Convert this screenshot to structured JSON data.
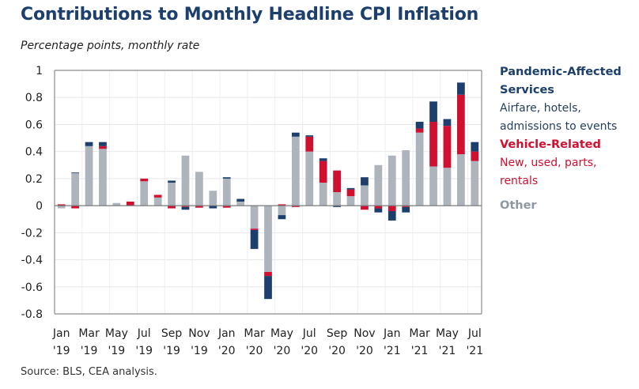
{
  "title": "Contributions to Monthly Headline CPI Inflation",
  "subtitle": "Percentage points, monthly rate",
  "source": "Source: BLS, CEA analysis.",
  "legend": {
    "pandemic_title": "Pandemic-Affected Services",
    "pandemic_title_line1": "Pandemic-Affected",
    "pandemic_title_line2": "Services",
    "pandemic_desc_line1": "Airfare, hotels,",
    "pandemic_desc_line2": "admissions to events",
    "vehicle_title": "Vehicle-Related",
    "vehicle_desc_line1": "New, used, parts,",
    "vehicle_desc_line2": "rentals",
    "other_title": "Other"
  },
  "colors": {
    "pandemic": "#1c3f6e",
    "vehicle": "#d0102f",
    "other": "#aeb4bc",
    "title": "#1c3f6e"
  },
  "chart_data": {
    "type": "bar",
    "stacked": true,
    "title": "Contributions to Monthly Headline CPI Inflation",
    "subtitle": "Percentage points, monthly rate",
    "xlabel": "",
    "ylabel": "Percentage points, monthly rate",
    "ylim": [
      -0.8,
      1.0
    ],
    "yticks": [
      1,
      0.8,
      0.6,
      0.4,
      0.2,
      0,
      -0.2,
      -0.4,
      -0.6,
      -0.8
    ],
    "ytick_labels": [
      "1",
      "0.8",
      "0.6",
      "0.4",
      "0.2",
      "0",
      "-0.2",
      "-0.4",
      "-0.6",
      "-0.8"
    ],
    "grid": true,
    "legend_position": "right",
    "categories": [
      "Jan 2019",
      "Feb 2019",
      "Mar 2019",
      "Apr 2019",
      "May 2019",
      "Jun 2019",
      "Jul 2019",
      "Aug 2019",
      "Sep 2019",
      "Oct 2019",
      "Nov 2019",
      "Dec 2019",
      "Jan 2020",
      "Feb 2020",
      "Mar 2020",
      "Apr 2020",
      "May 2020",
      "Jun 2020",
      "Jul 2020",
      "Aug 2020",
      "Sep 2020",
      "Oct 2020",
      "Nov 2020",
      "Dec 2020",
      "Jan 2021",
      "Feb 2021",
      "Mar 2021",
      "Apr 2021",
      "May 2021",
      "Jun 2021",
      "Jul 2021"
    ],
    "xtick_labels": [
      {
        "index": 0,
        "line1": "Jan",
        "line2": "'19"
      },
      {
        "index": 2,
        "line1": "Mar",
        "line2": "'19"
      },
      {
        "index": 4,
        "line1": "May",
        "line2": "'19"
      },
      {
        "index": 6,
        "line1": "Jul",
        "line2": "'19"
      },
      {
        "index": 8,
        "line1": "Sep",
        "line2": "'19"
      },
      {
        "index": 10,
        "line1": "Nov",
        "line2": "'19"
      },
      {
        "index": 12,
        "line1": "Jan",
        "line2": "'20"
      },
      {
        "index": 14,
        "line1": "Mar",
        "line2": "'20"
      },
      {
        "index": 16,
        "line1": "May",
        "line2": "'20"
      },
      {
        "index": 18,
        "line1": "Jul",
        "line2": "'20"
      },
      {
        "index": 20,
        "line1": "Sep",
        "line2": "'20"
      },
      {
        "index": 22,
        "line1": "Nov",
        "line2": "'20"
      },
      {
        "index": 24,
        "line1": "Jan",
        "line2": "'21"
      },
      {
        "index": 26,
        "line1": "Mar",
        "line2": "'21"
      },
      {
        "index": 28,
        "line1": "May",
        "line2": "'21"
      },
      {
        "index": 30,
        "line1": "Jul",
        "line2": "'21"
      }
    ],
    "series": [
      {
        "name": "Other",
        "key": "other",
        "values": [
          -0.02,
          0.24,
          0.44,
          0.42,
          0.02,
          0.0,
          0.18,
          0.06,
          0.17,
          0.37,
          0.25,
          0.11,
          0.2,
          0.03,
          -0.17,
          -0.49,
          -0.07,
          0.51,
          0.4,
          0.17,
          0.1,
          0.07,
          0.15,
          0.3,
          0.37,
          0.41,
          0.54,
          0.29,
          0.28,
          0.38,
          0.33
        ]
      },
      {
        "name": "Vehicle-Related",
        "key": "vehicle",
        "values": [
          0.01,
          -0.02,
          0.0,
          0.02,
          0.0,
          0.03,
          0.02,
          0.02,
          -0.02,
          -0.01,
          -0.015,
          0.0,
          -0.015,
          0.0,
          -0.01,
          -0.03,
          0.01,
          -0.01,
          0.11,
          0.16,
          0.16,
          0.05,
          -0.03,
          -0.02,
          -0.04,
          -0.01,
          0.03,
          0.33,
          0.31,
          0.44,
          0.07
        ]
      },
      {
        "name": "Pandemic-Affected Services",
        "key": "pandemic",
        "values": [
          0.0,
          0.005,
          0.03,
          0.03,
          0.0,
          0.0,
          0.0,
          0.0,
          0.015,
          -0.02,
          0.0,
          -0.02,
          0.01,
          0.02,
          -0.14,
          -0.17,
          -0.03,
          0.03,
          0.01,
          0.02,
          -0.01,
          0.01,
          0.06,
          -0.03,
          -0.07,
          -0.04,
          0.05,
          0.15,
          0.05,
          0.09,
          0.07
        ]
      }
    ]
  }
}
